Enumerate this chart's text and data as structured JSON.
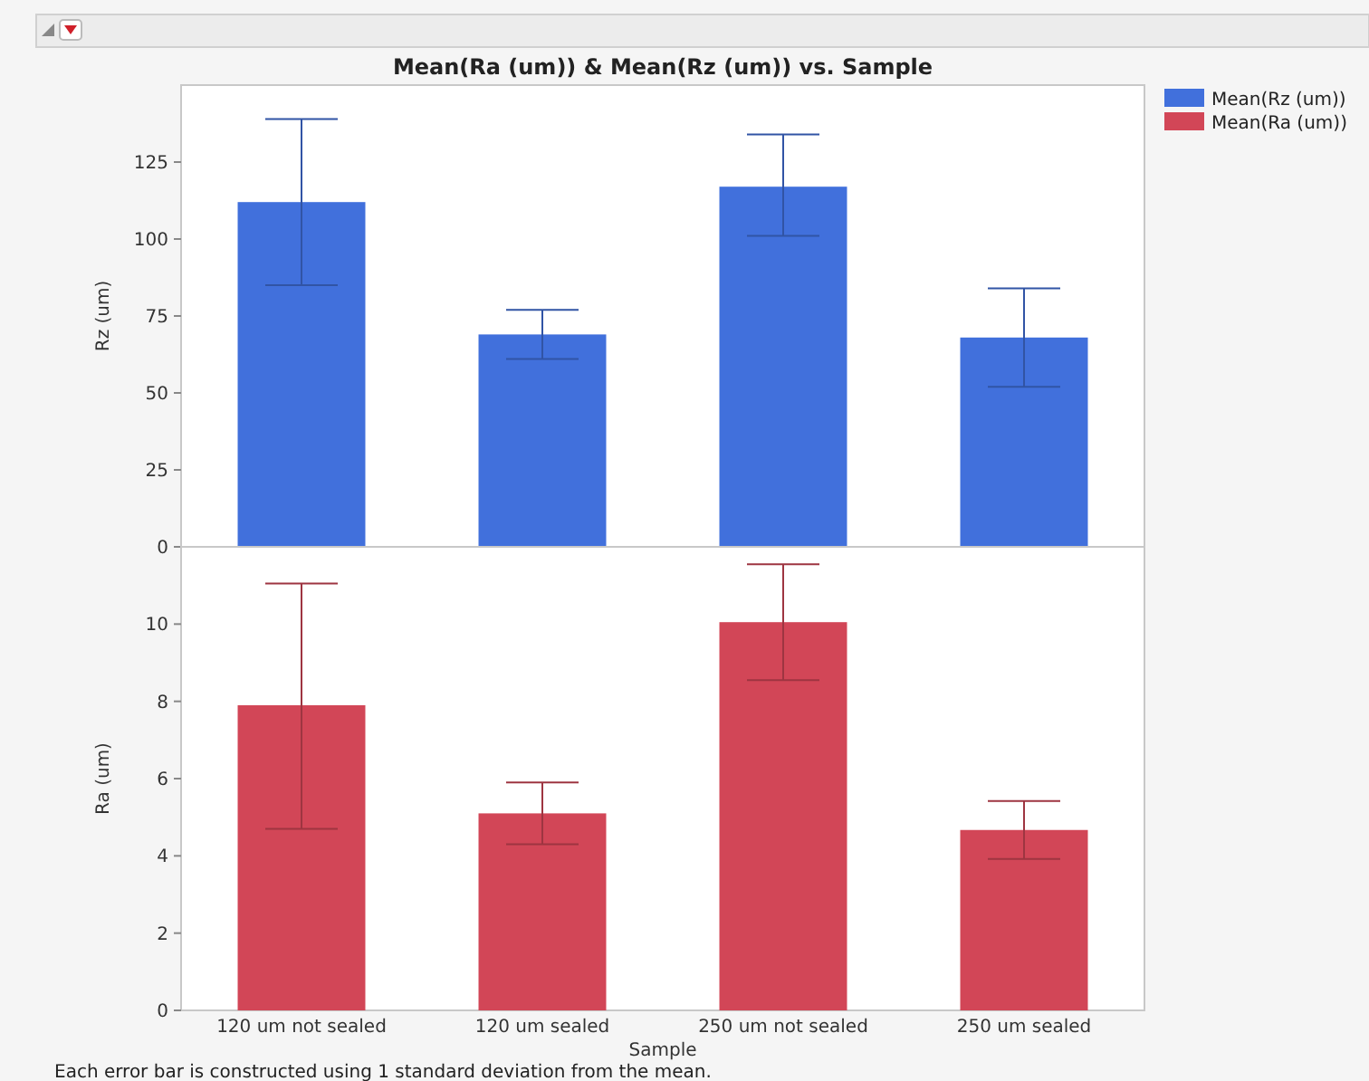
{
  "chart_data": [
    {
      "type": "bar",
      "title": "Mean(Ra (um)) & Mean(Rz (um)) vs. Sample",
      "ylabel": "Rz (um)",
      "categories": [
        null,
        null,
        null,
        null
      ],
      "tick_labels": "y",
      "ylim": [
        0,
        150
      ],
      "yticks": [
        0,
        25,
        50,
        75,
        100,
        125
      ],
      "legend": "right",
      "series": [
        {
          "name": "Mean(Rz (um))",
          "color": "#4170dc",
          "values": [
            112,
            69,
            117,
            68
          ],
          "errors": [
            [
              85,
              139
            ],
            [
              61,
              77
            ],
            [
              101,
              134
            ],
            [
              52,
              84
            ]
          ]
        }
      ]
    },
    {
      "type": "bar",
      "xlabel": "Sample",
      "ylabel": "Ra (um)",
      "categories": [
        "120 um not sealed",
        "120 um sealed",
        "250 um not sealed",
        "250 um sealed"
      ],
      "ylim": [
        0,
        12
      ],
      "yticks": [
        0,
        2,
        4,
        6,
        8,
        10
      ],
      "legend": "right",
      "annotations": [
        "Each error bar is constructed using 1 standard deviation from the mean."
      ],
      "series": [
        {
          "name": "Mean(Ra (um))",
          "color": "#d24657",
          "values": [
            7.9,
            5.1,
            10.05,
            4.67
          ],
          "errors": [
            [
              4.7,
              11.05
            ],
            [
              4.3,
              5.9
            ],
            [
              8.55,
              11.55
            ],
            [
              3.92,
              5.42
            ]
          ]
        }
      ]
    }
  ]
}
